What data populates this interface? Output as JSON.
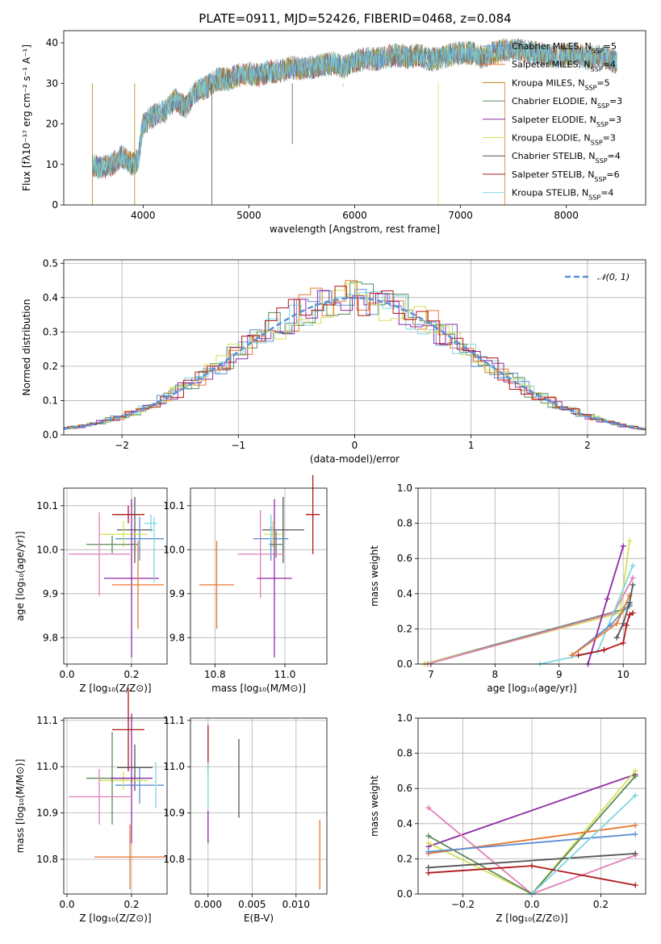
{
  "title": "PLATE=0911, MJD=52426, FIBERID=0468, z=0.084",
  "colors": {
    "Chabrier MILES": "#5b8fd6",
    "Salpeter MILES": "#e8772e",
    "Kroupa MILES": "#b8860b",
    "Chabrier ELODIE": "#5a8a5a",
    "Salpeter ELODIE": "#8e2aa5",
    "Kroupa ELODIE": "#d4e157",
    "Chabrier STELIB": "#555555",
    "Salpeter STELIB": "#b01818",
    "Kroupa STELIB": "#7fd7e0",
    "Pink": "#e07fb8",
    "normal": "#5b8fd6"
  },
  "chart_data": [
    {
      "id": "spectrum",
      "type": "line",
      "title": "PLATE=0911, MJD=52426, FIBERID=0468, z=0.084",
      "xlabel": "wavelength [Angstrom, rest frame]",
      "ylabel": "Flux [fλ10⁻¹⁷ erg cm⁻² s⁻¹ A⁻¹]",
      "xlim": [
        3250,
        8750
      ],
      "ylim": [
        0,
        43
      ],
      "xticks": [
        4000,
        5000,
        6000,
        7000,
        8000
      ],
      "yticks": [
        0,
        10,
        20,
        30,
        40
      ],
      "grid": false,
      "legend_placement": "top-right",
      "legend": [
        {
          "label": "Chabrier MILES, N",
          "sub": "SSP",
          "tail": "=5",
          "color_key": "Chabrier MILES"
        },
        {
          "label": "Salpeter MILES, N",
          "sub": "SSP",
          "tail": "=4",
          "color_key": "Salpeter MILES"
        },
        {
          "label": "Kroupa MILES, N",
          "sub": "SSP",
          "tail": "=5",
          "color_key": "Kroupa MILES"
        },
        {
          "label": "Chabrier ELODIE, N",
          "sub": "SSP",
          "tail": "=3",
          "color_key": "Chabrier ELODIE"
        },
        {
          "label": "Salpeter ELODIE, N",
          "sub": "SSP",
          "tail": "=3",
          "color_key": "Salpeter ELODIE"
        },
        {
          "label": "Kroupa ELODIE, N",
          "sub": "SSP",
          "tail": "=3",
          "color_key": "Kroupa ELODIE"
        },
        {
          "label": "Chabrier STELIB, N",
          "sub": "SSP",
          "tail": "=4",
          "color_key": "Chabrier STELIB"
        },
        {
          "label": "Salpeter STELIB, N",
          "sub": "SSP",
          "tail": "=6",
          "color_key": "Salpeter STELIB"
        },
        {
          "label": "Kroupa STELIB, N",
          "sub": "SSP",
          "tail": "=4",
          "color_key": "Kroupa STELIB"
        }
      ],
      "spectrum_envelope": {
        "x": [
          3520,
          3600,
          3700,
          3800,
          3900,
          3950,
          4000,
          4100,
          4200,
          4300,
          4400,
          4500,
          4600,
          4700,
          4800,
          4900,
          5000,
          5100,
          5200,
          5300,
          5400,
          5500,
          5600,
          5700,
          5800,
          5900,
          6000,
          6100,
          6200,
          6300,
          6400,
          6500,
          6600,
          6700,
          6800,
          6900,
          7000,
          7100,
          7200,
          7300,
          7400,
          7500,
          7600,
          7700,
          7800,
          7900,
          8000,
          8100,
          8200,
          8300,
          8400,
          8480
        ],
        "y": [
          10,
          9,
          10,
          12,
          10,
          11,
          20,
          22,
          23,
          26,
          24,
          28,
          29,
          31,
          31,
          32,
          32.5,
          32,
          33,
          33,
          34,
          33.5,
          34,
          34.5,
          35,
          34,
          35.5,
          36,
          36,
          36.5,
          37,
          36.5,
          37,
          36,
          36,
          37,
          37.5,
          37.5,
          36.5,
          37.5,
          38,
          38.5,
          38,
          37.5,
          37,
          36.5,
          37,
          37.5,
          36,
          37,
          36,
          35
        ]
      },
      "dropouts": [
        {
          "x": 3520,
          "y_bottom": 0,
          "color_key": "Kroupa MILES"
        },
        {
          "x": 3920,
          "y_bottom": 0,
          "color_key": "Kroupa MILES"
        },
        {
          "x": 4650,
          "y_bottom": 0,
          "color_key": "Chabrier STELIB"
        },
        {
          "x": 5410,
          "y_bottom": 15,
          "color_key": "Chabrier STELIB"
        },
        {
          "x": 5890,
          "y_bottom": 29,
          "color_key": "Kroupa STELIB"
        },
        {
          "x": 6790,
          "y_bottom": 0,
          "color_key": "Kroupa ELODIE"
        },
        {
          "x": 7420,
          "y_bottom": 0,
          "color_key": "Salpeter MILES"
        }
      ]
    },
    {
      "id": "residual_histogram",
      "type": "line",
      "xlabel": "(data-model)/error",
      "ylabel": "Normed distribution",
      "xlim": [
        -2.5,
        2.5
      ],
      "ylim": [
        0,
        0.51
      ],
      "xticks": [
        -2,
        -1,
        0,
        1,
        2
      ],
      "xtick_labels": [
        "−2",
        "−1",
        "0",
        "1",
        "2"
      ],
      "yticks": [
        0.0,
        0.1,
        0.2,
        0.3,
        0.4,
        0.5
      ],
      "ytick_labels": [
        "0.0",
        "0.1",
        "0.2",
        "0.3",
        "0.4",
        "0.5"
      ],
      "grid": true,
      "legend_placement": "top-right",
      "normal_label": "𝒩(0, 1)",
      "bin_width": 0.1,
      "series": [
        {
          "color_key": "Chabrier MILES",
          "offset": 0.0,
          "seed": 3
        },
        {
          "color_key": "Salpeter MILES",
          "offset": 0.02,
          "seed": 7
        },
        {
          "color_key": "Kroupa STELIB",
          "offset": 0.04,
          "seed": 11
        },
        {
          "color_key": "Chabrier ELODIE",
          "offset": 0.06,
          "seed": 13
        },
        {
          "color_key": "Salpeter ELODIE",
          "offset": 0.08,
          "seed": 17
        },
        {
          "color_key": "Kroupa ELODIE",
          "offset": 0.01,
          "seed": 19
        },
        {
          "color_key": "Salpeter STELIB",
          "offset": 0.03,
          "seed": 23
        }
      ]
    },
    {
      "id": "age_vs_Z",
      "type": "scatter",
      "xlabel": "Z [log₁₀(Z/Z⊙)]",
      "ylabel": "age  [log₁₀(age/yr)]",
      "xlim": [
        -0.01,
        0.31
      ],
      "ylim": [
        9.74,
        10.14
      ],
      "xticks": [
        0.0,
        0.2
      ],
      "xtick_labels": [
        "0.0",
        "0.2"
      ],
      "yticks": [
        9.8,
        9.9,
        10.0,
        10.1
      ],
      "ytick_labels": [
        "9.8",
        "9.9",
        "10.0",
        "10.1"
      ],
      "grid": true,
      "points": [
        {
          "x": 0.19,
          "y": 10.08,
          "xerr": 0.05,
          "yerr": 0.02,
          "color_key": "Salpeter STELIB"
        },
        {
          "x": 0.21,
          "y": 10.045,
          "xerr": 0.055,
          "yerr": 0.075,
          "color_key": "Chabrier STELIB"
        },
        {
          "x": 0.225,
          "y": 10.025,
          "xerr": 0.075,
          "yerr": 0.05,
          "color_key": "Chabrier MILES"
        },
        {
          "x": 0.26,
          "y": 10.06,
          "xerr": 0.02,
          "yerr": 0.02,
          "color_key": "Kroupa STELIB"
        },
        {
          "x": 0.175,
          "y": 10.035,
          "xerr": 0.075,
          "yerr": 0.03,
          "color_key": "Kroupa ELODIE"
        },
        {
          "x": 0.14,
          "y": 10.012,
          "xerr": 0.08,
          "yerr": 0.02,
          "color_key": "Chabrier ELODIE"
        },
        {
          "x": 0.1,
          "y": 9.99,
          "xerr": 0.095,
          "yerr": 0.095,
          "color_key": "Pink"
        },
        {
          "x": 0.2,
          "y": 9.935,
          "xerr": 0.085,
          "yerr": 0.18,
          "color_key": "Salpeter ELODIE"
        },
        {
          "x": 0.22,
          "y": 9.92,
          "xerr": 0.08,
          "yerr": 0.1,
          "color_key": "Salpeter MILES"
        },
        {
          "x": 0.27,
          "y": 10.0,
          "xerr": 0.0,
          "yerr": 0.075,
          "color_key": "Kroupa STELIB"
        }
      ]
    },
    {
      "id": "age_vs_mass",
      "type": "scatter",
      "xlabel": "mass [log₁₀(M/M⊙)]",
      "ylabel": "",
      "xlim": [
        10.73,
        11.12
      ],
      "ylim": [
        9.74,
        10.14
      ],
      "xticks": [
        10.8,
        11.0
      ],
      "xtick_labels": [
        "10.8",
        "11.0"
      ],
      "yticks": [
        9.8,
        9.9,
        10.0,
        10.1
      ],
      "ytick_labels": [
        "9.8",
        "9.9",
        "10.0",
        "10.1"
      ],
      "grid": true,
      "points": [
        {
          "x": 11.08,
          "y": 10.08,
          "xerr": 0.02,
          "yerr": 0.09,
          "color_key": "Salpeter STELIB"
        },
        {
          "x": 10.995,
          "y": 10.045,
          "xerr": 0.06,
          "yerr": 0.075,
          "color_key": "Chabrier STELIB"
        },
        {
          "x": 10.96,
          "y": 10.025,
          "xerr": 0.05,
          "yerr": 0.05,
          "color_key": "Chabrier MILES"
        },
        {
          "x": 10.965,
          "y": 10.035,
          "xerr": 0.025,
          "yerr": 0.03,
          "color_key": "Kroupa ELODIE"
        },
        {
          "x": 10.975,
          "y": 10.012,
          "xerr": 0.02,
          "yerr": 0.03,
          "color_key": "Chabrier ELODIE"
        },
        {
          "x": 10.93,
          "y": 9.99,
          "xerr": 0.065,
          "yerr": 0.1,
          "color_key": "Pink"
        },
        {
          "x": 10.97,
          "y": 9.935,
          "xerr": 0.05,
          "yerr": 0.18,
          "color_key": "Salpeter ELODIE"
        },
        {
          "x": 10.805,
          "y": 9.92,
          "xerr": 0.05,
          "yerr": 0.1,
          "color_key": "Salpeter MILES"
        },
        {
          "x": 10.96,
          "y": 10.05,
          "xerr": 0.005,
          "yerr": 0.03,
          "color_key": "Kroupa STELIB"
        }
      ]
    },
    {
      "id": "weight_vs_age",
      "type": "line",
      "xlabel": "age  [log₁₀(age/yr)]",
      "ylabel": "mass weight",
      "xlim": [
        6.8,
        10.35
      ],
      "ylim": [
        0,
        1.0
      ],
      "xticks": [
        7,
        8,
        9,
        10
      ],
      "yticks": [
        0.0,
        0.2,
        0.4,
        0.6,
        0.8,
        1.0
      ],
      "ytick_labels": [
        "0.0",
        "0.2",
        "0.4",
        "0.6",
        "0.8",
        "1.0"
      ],
      "grid": true,
      "series": [
        {
          "color_key": "Chabrier ELODIE",
          "x": [
            6.9,
            10.0,
            10.1
          ],
          "y": [
            0.0,
            0.31,
            0.33
          ]
        },
        {
          "color_key": "Kroupa ELODIE",
          "x": [
            6.9,
            9.95,
            10.1
          ],
          "y": [
            0.0,
            0.29,
            0.7
          ]
        },
        {
          "color_key": "Pink",
          "x": [
            6.95,
            9.85,
            10.15
          ],
          "y": [
            0.0,
            0.29,
            0.49
          ]
        },
        {
          "color_key": "Kroupa STELIB",
          "x": [
            8.7,
            9.6,
            10.15
          ],
          "y": [
            0.0,
            0.07,
            0.56
          ]
        },
        {
          "color_key": "Chabrier MILES",
          "x": [
            9.2,
            9.8,
            10.1
          ],
          "y": [
            0.05,
            0.22,
            0.34
          ]
        },
        {
          "color_key": "Salpeter ELODIE",
          "x": [
            9.45,
            9.75,
            10.0
          ],
          "y": [
            0.0,
            0.37,
            0.67
          ]
        },
        {
          "color_key": "Salpeter MILES",
          "x": [
            9.2,
            9.9,
            10.1
          ],
          "y": [
            0.05,
            0.23,
            0.39
          ]
        },
        {
          "color_key": "Chabrier STELIB",
          "x": [
            9.9,
            10.0,
            10.1,
            10.15
          ],
          "y": [
            0.15,
            0.23,
            0.35,
            0.45
          ]
        },
        {
          "color_key": "Salpeter STELIB",
          "x": [
            9.3,
            9.7,
            10.0,
            10.05,
            10.1,
            10.15
          ],
          "y": [
            0.05,
            0.08,
            0.12,
            0.22,
            0.28,
            0.29
          ]
        }
      ]
    },
    {
      "id": "mass_vs_Z",
      "type": "scatter",
      "xlabel": "Z [log₁₀(Z/Z⊙)]",
      "ylabel": "mass [log₁₀(M/M⊙)]",
      "xlim": [
        -0.01,
        0.31
      ],
      "ylim": [
        10.725,
        11.105
      ],
      "xticks": [
        0.0,
        0.2
      ],
      "xtick_labels": [
        "0.0",
        "0.2"
      ],
      "yticks": [
        10.8,
        10.9,
        11.0,
        11.1
      ],
      "ytick_labels": [
        "10.8",
        "10.9",
        "11.0",
        "11.1"
      ],
      "grid": true,
      "points": [
        {
          "x": 0.19,
          "y": 11.08,
          "xerr": 0.05,
          "yerr": 0.09,
          "color_key": "Salpeter STELIB"
        },
        {
          "x": 0.21,
          "y": 10.998,
          "xerr": 0.055,
          "yerr": 0.05,
          "color_key": "Chabrier STELIB"
        },
        {
          "x": 0.225,
          "y": 10.96,
          "xerr": 0.075,
          "yerr": 0.04,
          "color_key": "Chabrier MILES"
        },
        {
          "x": 0.275,
          "y": 10.96,
          "xerr": 0.005,
          "yerr": 0.05,
          "color_key": "Kroupa STELIB"
        },
        {
          "x": 0.175,
          "y": 10.97,
          "xerr": 0.075,
          "yerr": 0.02,
          "color_key": "Kroupa ELODIE"
        },
        {
          "x": 0.14,
          "y": 10.975,
          "xerr": 0.08,
          "yerr": 0.1,
          "color_key": "Chabrier ELODIE"
        },
        {
          "x": 0.1,
          "y": 10.935,
          "xerr": 0.095,
          "yerr": 0.06,
          "color_key": "Pink"
        },
        {
          "x": 0.2,
          "y": 10.975,
          "xerr": 0.065,
          "yerr": 0.14,
          "color_key": "Salpeter ELODIE"
        },
        {
          "x": 0.195,
          "y": 10.805,
          "xerr": 0.11,
          "yerr": 0.07,
          "color_key": "Salpeter MILES"
        }
      ]
    },
    {
      "id": "mass_vs_EBV",
      "type": "scatter",
      "xlabel": "E(B-V)",
      "ylabel": "",
      "xlim": [
        -0.002,
        0.0135
      ],
      "ylim": [
        10.725,
        11.105
      ],
      "xticks": [
        0.0,
        0.005,
        0.01
      ],
      "xtick_labels": [
        "0.000",
        "0.005",
        "0.010"
      ],
      "yticks": [
        10.8,
        10.9,
        11.0,
        11.1
      ],
      "ytick_labels": [
        "10.8",
        "10.9",
        "11.0",
        "11.1"
      ],
      "grid": true,
      "points": [
        {
          "x": 0.0,
          "y": 11.04,
          "xerr": 0.0,
          "yerr": 0.05,
          "color_key": "Salpeter STELIB"
        },
        {
          "x": 0.0,
          "y": 10.96,
          "xerr": 0.0,
          "yerr": 0.05,
          "color_key": "Kroupa STELIB"
        },
        {
          "x": 0.0,
          "y": 10.87,
          "xerr": 0.0,
          "yerr": 0.035,
          "color_key": "Salpeter ELODIE"
        },
        {
          "x": 0.0035,
          "y": 10.975,
          "xerr": 0.0,
          "yerr": 0.085,
          "color_key": "Chabrier STELIB"
        },
        {
          "x": 0.0127,
          "y": 10.81,
          "xerr": 0.0,
          "yerr": 0.075,
          "color_key": "Salpeter MILES"
        }
      ]
    },
    {
      "id": "weight_vs_Z",
      "type": "line",
      "xlabel": "Z [log₁₀(Z/Z⊙)]",
      "ylabel": "mass weight",
      "xlim": [
        -0.33,
        0.33
      ],
      "ylim": [
        0,
        1.0
      ],
      "xticks": [
        -0.2,
        0.0,
        0.2
      ],
      "xtick_labels": [
        "−0.2",
        "0.0",
        "0.2"
      ],
      "yticks": [
        0.0,
        0.2,
        0.4,
        0.6,
        0.8,
        1.0
      ],
      "ytick_labels": [
        "0.0",
        "0.2",
        "0.4",
        "0.6",
        "0.8",
        "1.0"
      ],
      "grid": true,
      "series": [
        {
          "color_key": "Salpeter ELODIE",
          "x": [
            -0.3,
            0.3
          ],
          "y": [
            0.27,
            0.68
          ]
        },
        {
          "color_key": "Kroupa ELODIE",
          "x": [
            -0.3,
            0.0,
            0.3
          ],
          "y": [
            0.29,
            0.0,
            0.7
          ]
        },
        {
          "color_key": "Pink",
          "x": [
            -0.3,
            0.0,
            0.3
          ],
          "y": [
            0.49,
            0.0,
            0.22
          ]
        },
        {
          "color_key": "Chabrier ELODIE",
          "x": [
            -0.3,
            0.0,
            0.3
          ],
          "y": [
            0.33,
            0.0,
            0.67
          ]
        },
        {
          "color_key": "Salpeter MILES",
          "x": [
            -0.3,
            0.3
          ],
          "y": [
            0.23,
            0.39
          ]
        },
        {
          "color_key": "Chabrier MILES",
          "x": [
            -0.3,
            0.3
          ],
          "y": [
            0.24,
            0.34
          ]
        },
        {
          "color_key": "Chabrier STELIB",
          "x": [
            -0.3,
            0.3
          ],
          "y": [
            0.15,
            0.23
          ]
        },
        {
          "color_key": "Salpeter STELIB",
          "x": [
            -0.3,
            0.0,
            0.3
          ],
          "y": [
            0.12,
            0.16,
            0.05
          ]
        },
        {
          "color_key": "Kroupa STELIB",
          "x": [
            0.0,
            0.3
          ],
          "y": [
            0.0,
            0.56
          ]
        }
      ]
    }
  ]
}
